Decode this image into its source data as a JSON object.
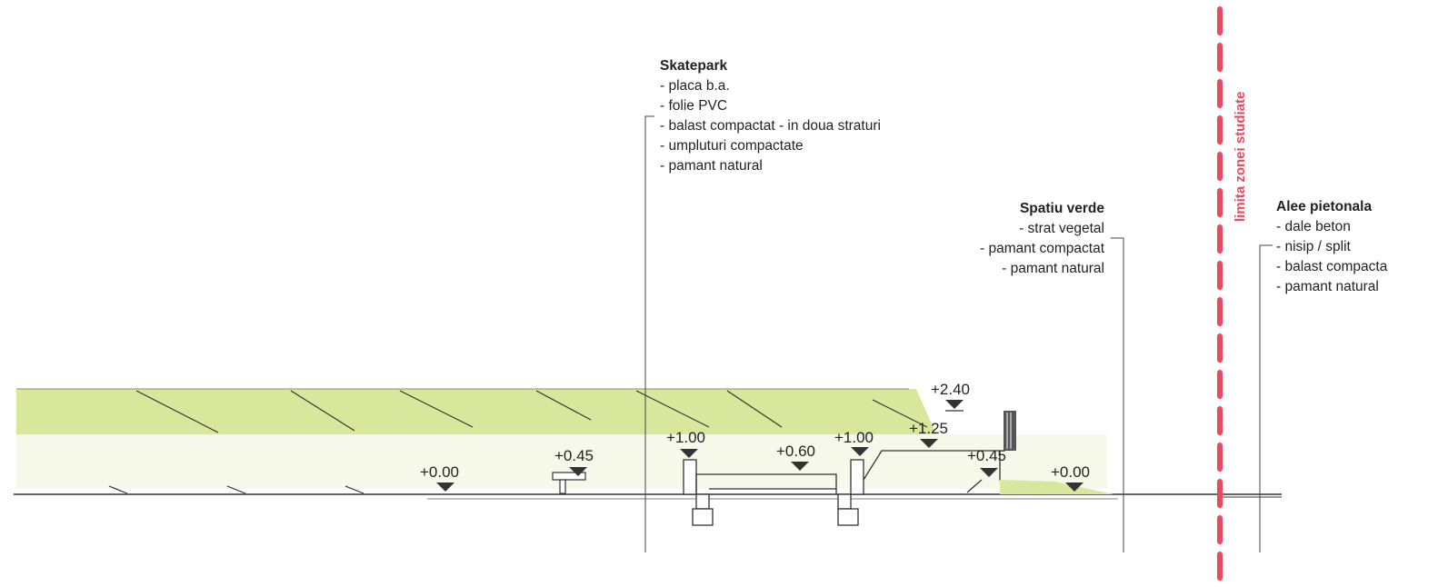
{
  "notes": {
    "skatepark": {
      "title": "Skatepark",
      "layers": [
        "- placa b.a.",
        "- folie PVC",
        "- balast compactat - in doua straturi",
        "- umpluturi compactate",
        "- pamant natural"
      ]
    },
    "spatiu_verde": {
      "title": "Spatiu verde",
      "layers": [
        "- strat vegetal",
        "- pamant compactat",
        "- pamant natural"
      ]
    },
    "alee": {
      "title": "Alee pietonala",
      "layers": [
        "- dale beton",
        "- nisip / split",
        "- balast compacta",
        "- pamant natural"
      ]
    }
  },
  "limit_label": "limita zonei studiate",
  "levels": {
    "l1": "+0.00",
    "l2": "+0.45",
    "l3": "+1.00",
    "l4": "+0.60",
    "l5": "+1.00",
    "l6": "+1.25",
    "l7": "+2.40",
    "l8": "+0.45",
    "l9": "+0.00"
  },
  "colors": {
    "vegetation": "#d6e69a",
    "vegetation_light": "#eef4d2",
    "limit_line": "#e84a5f",
    "ink": "#222222"
  }
}
